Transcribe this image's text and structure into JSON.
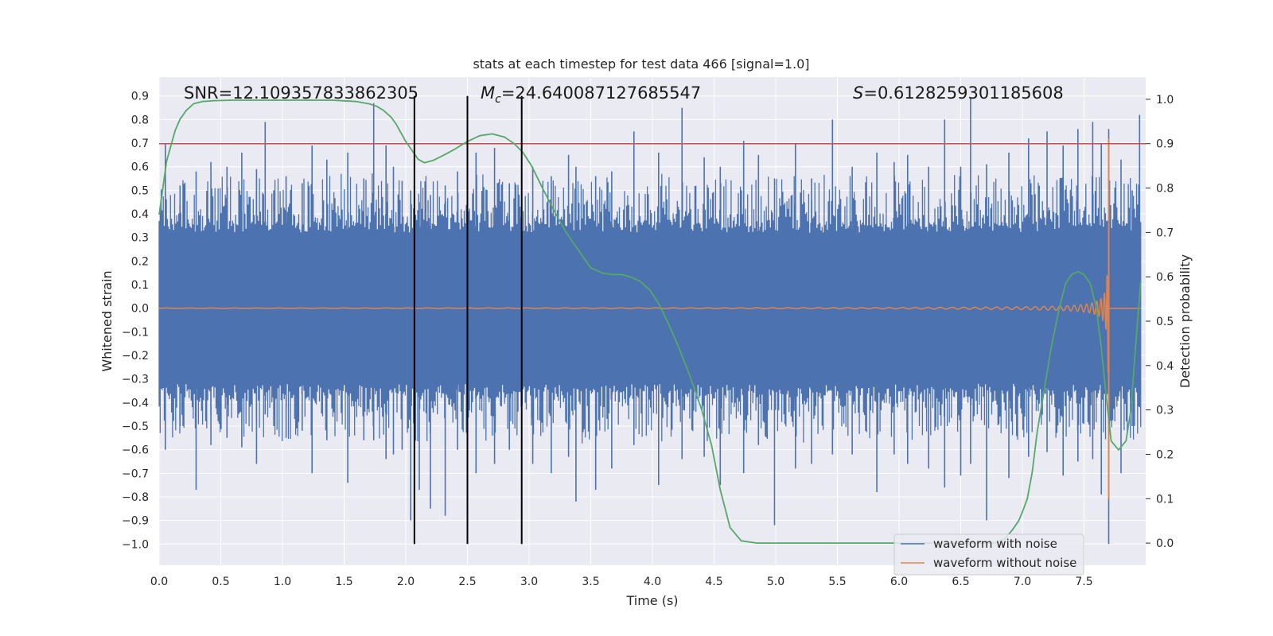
{
  "chart_data": {
    "type": "line",
    "title": "stats at each timestep for test data 466 [signal=1.0]",
    "xlabel": "Time (s)",
    "ylabel": "Whitened strain",
    "y2label": "Detection probability",
    "xlim": [
      0.0,
      8.0
    ],
    "ylim": [
      -1.09,
      0.98
    ],
    "y2lim": [
      -0.05,
      1.05
    ],
    "xticks": [
      0.0,
      0.5,
      1.0,
      1.5,
      2.0,
      2.5,
      3.0,
      3.5,
      4.0,
      4.5,
      5.0,
      5.5,
      6.0,
      6.5,
      7.0,
      7.5
    ],
    "xtick_labels": [
      "0.0",
      "0.5",
      "1.0",
      "1.5",
      "2.0",
      "2.5",
      "3.0",
      "3.5",
      "4.0",
      "4.5",
      "5.0",
      "5.5",
      "6.0",
      "6.5",
      "7.0",
      "7.5"
    ],
    "yticks": [
      0.9,
      0.8,
      0.7,
      0.6,
      0.5,
      0.4,
      0.3,
      0.2,
      0.1,
      0.0,
      -0.1,
      -0.2,
      -0.3,
      -0.4,
      -0.5,
      -0.6,
      -0.7,
      -0.8,
      -0.9,
      -1.0
    ],
    "ytick_labels": [
      "0.9",
      "0.8",
      "0.7",
      "0.6",
      "0.5",
      "0.4",
      "0.3",
      "0.2",
      "0.1",
      "0.0",
      "−0.1",
      "−0.2",
      "−0.3",
      "−0.4",
      "−0.5",
      "−0.6",
      "−0.7",
      "−0.8",
      "−0.9",
      "−1.0"
    ],
    "y2ticks": [
      1.0,
      0.9,
      0.8,
      0.7,
      0.6,
      0.5,
      0.4,
      0.3,
      0.2,
      0.1,
      0.0
    ],
    "y2tick_labels": [
      "1.0",
      "0.9",
      "0.8",
      "0.7",
      "0.6",
      "0.5",
      "0.4",
      "0.3",
      "0.2",
      "0.1",
      "0.0"
    ],
    "annotations": {
      "snr": "SNR=12.109357833862305",
      "mc_symbol": "M",
      "mc_sub": "c",
      "mc_value": "=24.640087127685547",
      "s_symbol": "S",
      "s_value": "=0.6128259301185608"
    },
    "threshold": {
      "y2": 0.9,
      "color": "#c44e52"
    },
    "vlines_x": [
      2.07,
      2.5,
      2.94
    ],
    "vline_range": [
      -1.0,
      0.9
    ],
    "series": [
      {
        "name": "waveform with noise",
        "color": "#4c72b0",
        "band_core": 0.32,
        "band_env": 0.42,
        "spikes": [
          [
            0.05,
            0.7,
            -0.6
          ],
          [
            0.17,
            0.52,
            -0.5
          ],
          [
            0.3,
            0.58,
            -0.77
          ],
          [
            0.42,
            0.62,
            -0.58
          ],
          [
            0.55,
            0.6,
            -0.55
          ],
          [
            0.67,
            0.66,
            -0.59
          ],
          [
            0.79,
            0.59,
            -0.66
          ],
          [
            0.86,
            0.79,
            -0.45
          ],
          [
            0.93,
            0.5,
            -0.5
          ],
          [
            1.03,
            0.56,
            -0.55
          ],
          [
            1.16,
            0.53,
            -0.52
          ],
          [
            1.24,
            0.69,
            -0.7
          ],
          [
            1.36,
            0.63,
            -0.56
          ],
          [
            1.53,
            0.66,
            -0.74
          ],
          [
            1.66,
            0.55,
            -0.56
          ],
          [
            1.74,
            0.87,
            -0.56
          ],
          [
            1.84,
            0.69,
            -0.64
          ],
          [
            1.9,
            0.6,
            -0.62
          ],
          [
            1.97,
            0.54,
            -0.6
          ],
          [
            2.04,
            0.5,
            -0.9
          ],
          [
            2.11,
            0.45,
            -0.77
          ],
          [
            2.2,
            0.48,
            -0.85
          ],
          [
            2.32,
            0.52,
            -0.88
          ],
          [
            2.42,
            0.58,
            -0.6
          ],
          [
            2.57,
            0.66,
            -0.7
          ],
          [
            2.72,
            0.68,
            -0.66
          ],
          [
            2.84,
            0.53,
            -0.6
          ],
          [
            3.03,
            0.6,
            -0.66
          ],
          [
            3.18,
            0.56,
            -0.7
          ],
          [
            3.32,
            0.65,
            -0.63
          ],
          [
            3.38,
            0.6,
            -0.82
          ],
          [
            3.54,
            0.56,
            -0.77
          ],
          [
            3.67,
            0.58,
            -0.68
          ],
          [
            3.85,
            0.75,
            -0.58
          ],
          [
            4.05,
            0.66,
            -0.75
          ],
          [
            4.24,
            0.85,
            -0.64
          ],
          [
            4.42,
            0.64,
            -0.63
          ],
          [
            4.55,
            0.6,
            -0.75
          ],
          [
            4.74,
            0.71,
            -0.7
          ],
          [
            4.86,
            0.65,
            -0.58
          ],
          [
            4.99,
            0.55,
            -0.92
          ],
          [
            5.16,
            0.7,
            -0.68
          ],
          [
            5.29,
            0.55,
            -0.66
          ],
          [
            5.46,
            0.8,
            -0.62
          ],
          [
            5.62,
            0.6,
            -0.62
          ],
          [
            5.82,
            0.66,
            -0.78
          ],
          [
            5.96,
            0.62,
            -0.62
          ],
          [
            6.07,
            0.65,
            -0.66
          ],
          [
            6.24,
            0.6,
            -0.68
          ],
          [
            6.37,
            0.8,
            -0.76
          ],
          [
            6.5,
            0.6,
            -0.71
          ],
          [
            6.58,
            0.89,
            -0.66
          ],
          [
            6.71,
            0.61,
            -0.9
          ],
          [
            6.89,
            0.66,
            -0.72
          ],
          [
            7.05,
            0.72,
            -0.63
          ],
          [
            7.2,
            0.75,
            -0.61
          ],
          [
            7.33,
            0.69,
            -0.71
          ],
          [
            7.45,
            0.76,
            -0.65
          ],
          [
            7.57,
            0.79,
            -0.64
          ],
          [
            7.64,
            0.7,
            -0.79
          ],
          [
            7.7,
            0.76,
            -1.0
          ],
          [
            7.8,
            0.63,
            -0.7
          ],
          [
            7.89,
            0.5,
            -0.5
          ],
          [
            7.95,
            0.82,
            -0.42
          ]
        ]
      },
      {
        "name": "waveform without noise",
        "color": "#dd8452",
        "merger_x": 7.7,
        "merger_min": -0.81,
        "merger_max": 0.72
      },
      {
        "name": "detection probability",
        "color": "#55a868",
        "axis": "y2",
        "x": [
          0.0,
          0.03,
          0.06,
          0.1,
          0.13,
          0.17,
          0.22,
          0.28,
          0.35,
          0.45,
          0.6,
          0.8,
          1.0,
          1.2,
          1.4,
          1.6,
          1.7,
          1.76,
          1.82,
          1.88,
          1.92,
          1.96,
          2.0,
          2.05,
          2.1,
          2.15,
          2.22,
          2.3,
          2.4,
          2.5,
          2.6,
          2.7,
          2.8,
          2.88,
          2.95,
          3.02,
          3.1,
          3.2,
          3.3,
          3.4,
          3.5,
          3.6,
          3.68,
          3.75,
          3.82,
          3.9,
          3.98,
          4.05,
          4.12,
          4.2,
          4.3,
          4.4,
          4.48,
          4.55,
          4.63,
          4.72,
          4.85,
          5.0,
          5.5,
          6.0,
          6.5,
          6.78,
          6.86,
          6.92,
          6.97,
          7.0,
          7.04,
          7.08,
          7.12,
          7.18,
          7.24,
          7.3,
          7.35,
          7.4,
          7.45,
          7.5,
          7.55,
          7.6,
          7.64,
          7.68,
          7.72,
          7.78,
          7.84,
          7.88,
          7.92,
          7.96
        ],
        "y": [
          0.74,
          0.8,
          0.86,
          0.9,
          0.93,
          0.955,
          0.975,
          0.99,
          0.995,
          0.997,
          0.998,
          0.998,
          0.998,
          0.998,
          0.998,
          0.995,
          0.99,
          0.985,
          0.975,
          0.96,
          0.945,
          0.925,
          0.905,
          0.885,
          0.865,
          0.857,
          0.862,
          0.873,
          0.888,
          0.905,
          0.918,
          0.922,
          0.915,
          0.9,
          0.88,
          0.85,
          0.805,
          0.75,
          0.7,
          0.66,
          0.62,
          0.608,
          0.605,
          0.605,
          0.6,
          0.59,
          0.57,
          0.54,
          0.5,
          0.45,
          0.38,
          0.3,
          0.22,
          0.12,
          0.035,
          0.005,
          0.0,
          0.0,
          0.0,
          0.0,
          0.0,
          0.0,
          0.01,
          0.03,
          0.05,
          0.07,
          0.1,
          0.16,
          0.25,
          0.35,
          0.45,
          0.53,
          0.585,
          0.605,
          0.612,
          0.605,
          0.585,
          0.53,
          0.44,
          0.33,
          0.23,
          0.21,
          0.23,
          0.3,
          0.45,
          0.59
        ]
      }
    ],
    "legend": {
      "location": "lower-right",
      "entries": [
        "waveform with noise",
        "waveform without noise"
      ]
    }
  }
}
